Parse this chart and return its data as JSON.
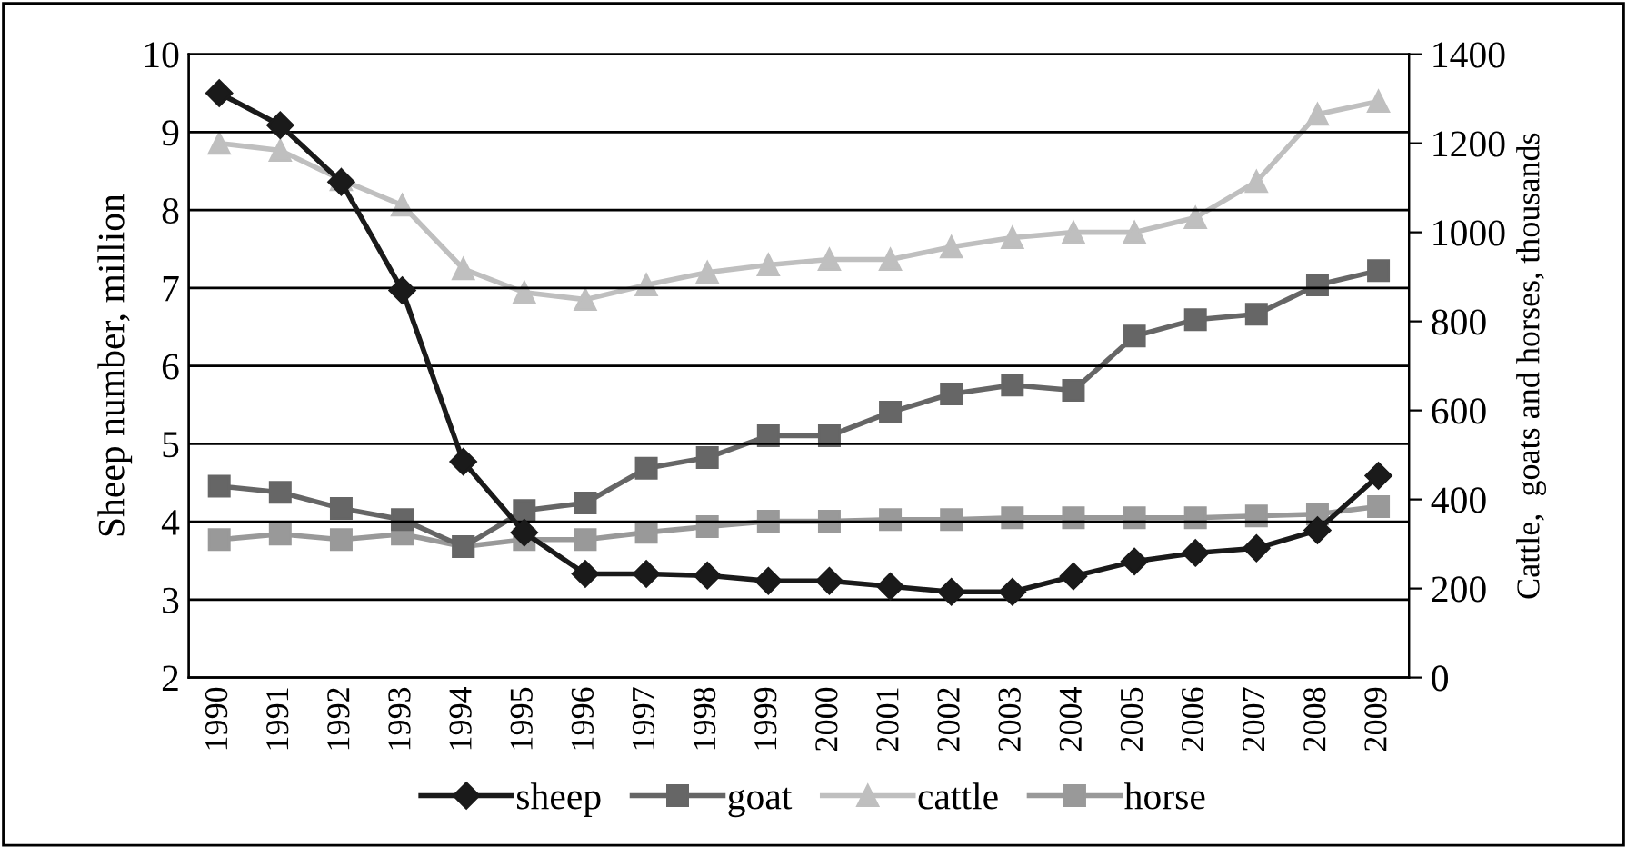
{
  "chart_data": {
    "type": "line",
    "categories": [
      "1990",
      "1991",
      "1992",
      "1993",
      "1994",
      "1995",
      "1996",
      "1997",
      "1998",
      "1999",
      "2000",
      "2001",
      "2002",
      "2003",
      "2004",
      "2005",
      "2006",
      "2007",
      "2008",
      "2009"
    ],
    "ylabel": "Sheep number, million",
    "y2label": "Cattle,  goats and horses, thousands",
    "ylim": [
      2,
      10
    ],
    "yticks": [
      2,
      3,
      4,
      5,
      6,
      7,
      8,
      9,
      10
    ],
    "y2lim": [
      0,
      1400
    ],
    "y2ticks": [
      0,
      200,
      400,
      600,
      800,
      1000,
      1200,
      1400
    ],
    "grid": "y",
    "legend": "bottom",
    "series": [
      {
        "name": "sheep",
        "color": "#1a1a1a",
        "marker": "diamond",
        "values": [
          9.5,
          9.09,
          8.36,
          6.97,
          4.77,
          3.86,
          3.33,
          3.33,
          3.31,
          3.24,
          3.24,
          3.17,
          3.1,
          3.1,
          3.3,
          3.49,
          3.6,
          3.66,
          3.89,
          4.59
        ]
      },
      {
        "name": "goat",
        "color": "#666666",
        "marker": "square",
        "axis": "y2",
        "values": [
          430,
          416,
          380,
          355,
          294,
          375,
          392,
          470,
          494,
          543,
          543,
          596,
          637,
          657,
          645,
          767,
          804,
          816,
          882,
          914
        ]
      },
      {
        "name": "cattle",
        "color": "#bfbfbf",
        "marker": "triangle",
        "axis": "y2",
        "values": [
          1200,
          1184,
          1118,
          1061,
          918,
          865,
          849,
          882,
          910,
          927,
          939,
          939,
          967,
          988,
          1000,
          1000,
          1033,
          1114,
          1265,
          1294
        ]
      },
      {
        "name": "horse",
        "color": "#999999",
        "marker": "square",
        "axis": "y2",
        "values": [
          310,
          322,
          310,
          322,
          294,
          310,
          310,
          326,
          339,
          351,
          351,
          355,
          355,
          359,
          359,
          359,
          359,
          363,
          367,
          384
        ]
      }
    ]
  }
}
